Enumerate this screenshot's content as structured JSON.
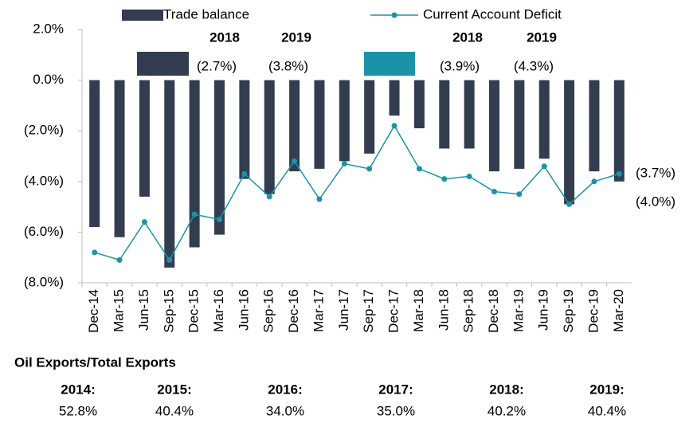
{
  "chart_data": {
    "type": "bar",
    "categories": [
      "Dec-14",
      "Mar-15",
      "Jun-15",
      "Sep-15",
      "Dec-15",
      "Mar-16",
      "Jun-16",
      "Sep-16",
      "Dec-16",
      "Mar-17",
      "Jun-17",
      "Sep-17",
      "Dec-17",
      "Mar-18",
      "Jun-18",
      "Sep-18",
      "Dec-18",
      "Mar-19",
      "Jun-19",
      "Sep-19",
      "Dec-19",
      "Mar-20"
    ],
    "series": [
      {
        "name": "Trade balance",
        "type": "bar",
        "color": "#323e4f",
        "values": [
          -5.8,
          -6.2,
          -4.6,
          -7.4,
          -6.6,
          -6.1,
          -3.9,
          -4.5,
          -3.6,
          -3.5,
          -3.2,
          -2.9,
          -1.4,
          -1.9,
          -2.7,
          -2.7,
          -3.6,
          -3.5,
          -3.1,
          -4.9,
          -3.6,
          -4.0
        ],
        "value_labels": [
          null,
          null,
          null,
          null,
          null,
          null,
          null,
          null,
          null,
          null,
          null,
          null,
          null,
          null,
          null,
          null,
          null,
          null,
          null,
          null,
          null,
          "(4.0%)"
        ],
        "annual": [
          {
            "year": "2018",
            "value": -2.7,
            "label": "(2.7%)"
          },
          {
            "year": "2019",
            "value": -3.8,
            "label": "(3.8%)"
          }
        ]
      },
      {
        "name": "Current Account Deficit",
        "type": "line",
        "color": "#1a93a8",
        "values": [
          -6.8,
          -7.1,
          -5.6,
          -7.1,
          -5.3,
          -5.5,
          -3.7,
          -4.6,
          -3.2,
          -4.7,
          -3.3,
          -3.5,
          -1.8,
          -3.5,
          -3.9,
          -3.8,
          -4.4,
          -4.5,
          -3.4,
          -4.9,
          -4.0,
          -3.7
        ],
        "value_labels": [
          null,
          null,
          null,
          null,
          null,
          null,
          null,
          null,
          null,
          null,
          null,
          null,
          null,
          null,
          null,
          null,
          null,
          null,
          null,
          null,
          null,
          "(3.7%)"
        ],
        "annual": [
          {
            "year": "2018",
            "value": -3.9,
            "label": "(3.9%)"
          },
          {
            "year": "2019",
            "value": -4.3,
            "label": "(4.3%)"
          }
        ]
      }
    ],
    "ylim": [
      -8,
      2
    ],
    "yticks": [
      {
        "value": 2,
        "label": "2.0%"
      },
      {
        "value": 0,
        "label": "0.0%"
      },
      {
        "value": -2,
        "label": "(2.0%)"
      },
      {
        "value": -4,
        "label": "(4.0%)"
      },
      {
        "value": -6,
        "label": "(6.0%)"
      },
      {
        "value": -8,
        "label": "(8.0%)"
      }
    ],
    "legend": "top"
  },
  "table": {
    "title": "Oil Exports/Total Exports",
    "rows": [
      [
        "2014:",
        "2015:",
        "2016:",
        "2017:",
        "2018:",
        "2019:"
      ],
      [
        "52.8%",
        "40.4%",
        "34.0%",
        "35.0%",
        "40.2%",
        "40.4%"
      ]
    ]
  }
}
